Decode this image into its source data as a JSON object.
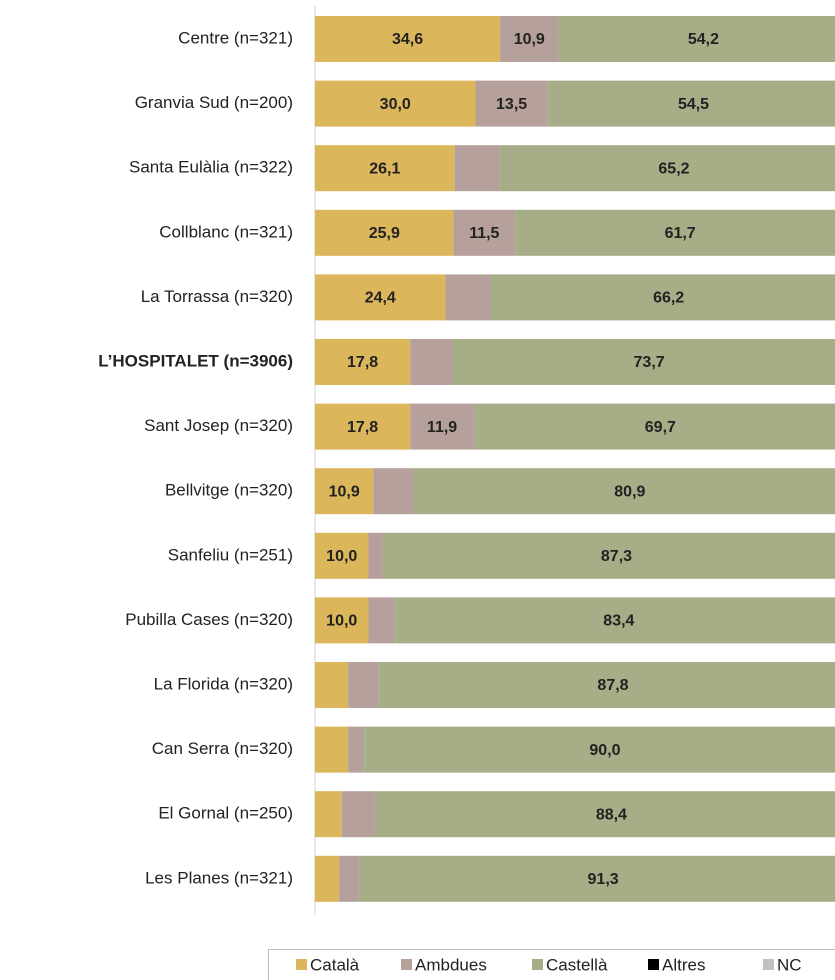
{
  "chart_data": {
    "type": "stacked_barh",
    "categories": [
      "Centre (n=321)",
      "Granvia Sud (n=200)",
      "Santa Eulàlia (n=322)",
      "Collblanc (n=321)",
      "La Torrassa (n=320)",
      "L’HOSPITALET (n=3906)",
      "Sant Josep (n=320)",
      "Bellvitge (n=320)",
      "Sanfeliu (n=251)",
      "Pubilla Cases (n=320)",
      "La Florida (n=320)",
      "Can Serra (n=320)",
      "El Gornal (n=250)",
      "Les Planes (n=321)"
    ],
    "emphasized_index": 5,
    "xlim": [
      0,
      100
    ],
    "series": [
      {
        "name": "Català",
        "color": "#dcb65a",
        "values": [
          34.6,
          30.0,
          26.1,
          25.9,
          24.4,
          17.8,
          17.8,
          10.9,
          10.0,
          10.0,
          6.2,
          6.2,
          5.0,
          4.5
        ],
        "value_labels": [
          "34,6",
          "30,0",
          "26,1",
          "25,9",
          "24,4",
          "17,8",
          "17,8",
          "10,9",
          "10,0",
          "10,0",
          null,
          null,
          null,
          null
        ]
      },
      {
        "name": "Ambdues",
        "color": "#b6a09b",
        "values": [
          10.9,
          13.5,
          8.4,
          11.5,
          8.6,
          7.8,
          11.9,
          7.5,
          2.7,
          5.1,
          5.6,
          3.0,
          6.2,
          3.7
        ],
        "value_labels": [
          "10,9",
          "13,5",
          null,
          "11,5",
          null,
          null,
          "11,9",
          null,
          null,
          null,
          null,
          null,
          null,
          null
        ]
      },
      {
        "name": "Castellà",
        "color": "#a6ae87",
        "values": [
          54.2,
          54.5,
          65.2,
          61.7,
          66.2,
          73.7,
          69.7,
          80.9,
          87.3,
          83.4,
          87.8,
          90.0,
          88.4,
          91.3
        ],
        "value_labels": [
          "54,2",
          "54,5",
          "65,2",
          "61,7",
          "66,2",
          "73,7",
          "69,7",
          "80,9",
          "87,3",
          "83,4",
          "87,8",
          "90,0",
          "88,4",
          "91,3"
        ]
      },
      {
        "name": "Altres",
        "color": "#000000",
        "values": [
          null,
          null,
          null,
          null,
          null,
          null,
          null,
          null,
          null,
          null,
          null,
          null,
          null,
          null
        ]
      },
      {
        "name": "NC",
        "color": "#c0c0c0",
        "values": [
          null,
          null,
          null,
          null,
          null,
          null,
          null,
          null,
          null,
          null,
          null,
          null,
          null,
          null
        ]
      }
    ]
  }
}
